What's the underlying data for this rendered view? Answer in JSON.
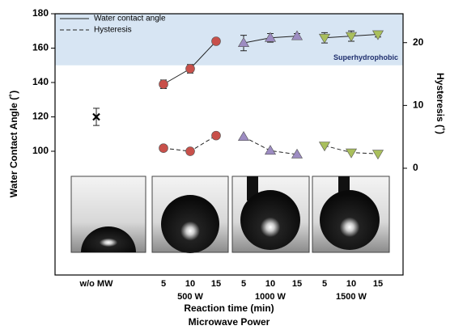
{
  "chart_data": {
    "type": "line",
    "y_label": "Water Contact Angle (˚)",
    "y2_label": "Hysteresis (˚)",
    "x_label": "Reaction time (min)",
    "x_label2": "Microwave Power",
    "band_label": "Superhydrophobic",
    "band": [
      150,
      180
    ],
    "band_color": "#d7e5f3",
    "categories": [
      "w/o MW",
      "5",
      "10",
      "15",
      "5",
      "10",
      "15",
      "5",
      "10",
      "15"
    ],
    "group_labels": [
      "500 W",
      "1000 W",
      "1500 W"
    ],
    "group_colors": [
      "#c8504a",
      "#9d8cc2",
      "#a9bf5c"
    ],
    "ylim": [
      28,
      180
    ],
    "yticks": [
      100,
      120,
      140,
      160,
      180
    ],
    "y2lim": [
      -17,
      24.6
    ],
    "y2ticks": [
      0,
      10,
      20
    ],
    "legend": "upper left",
    "series": [
      {
        "name": "Water contact angle",
        "values": [
          120,
          139,
          148,
          164,
          163,
          166,
          167,
          166,
          167,
          168
        ],
        "errors": [
          5,
          2.5,
          2.5,
          1.5,
          4.5,
          2.5,
          1.5,
          3,
          3,
          1.5
        ]
      },
      {
        "name": "Hysteresis",
        "axis": "y2",
        "values": [
          null,
          3.2,
          2.7,
          5.2,
          5.0,
          2.8,
          2.2,
          3.6,
          2.5,
          2.3
        ]
      }
    ]
  }
}
